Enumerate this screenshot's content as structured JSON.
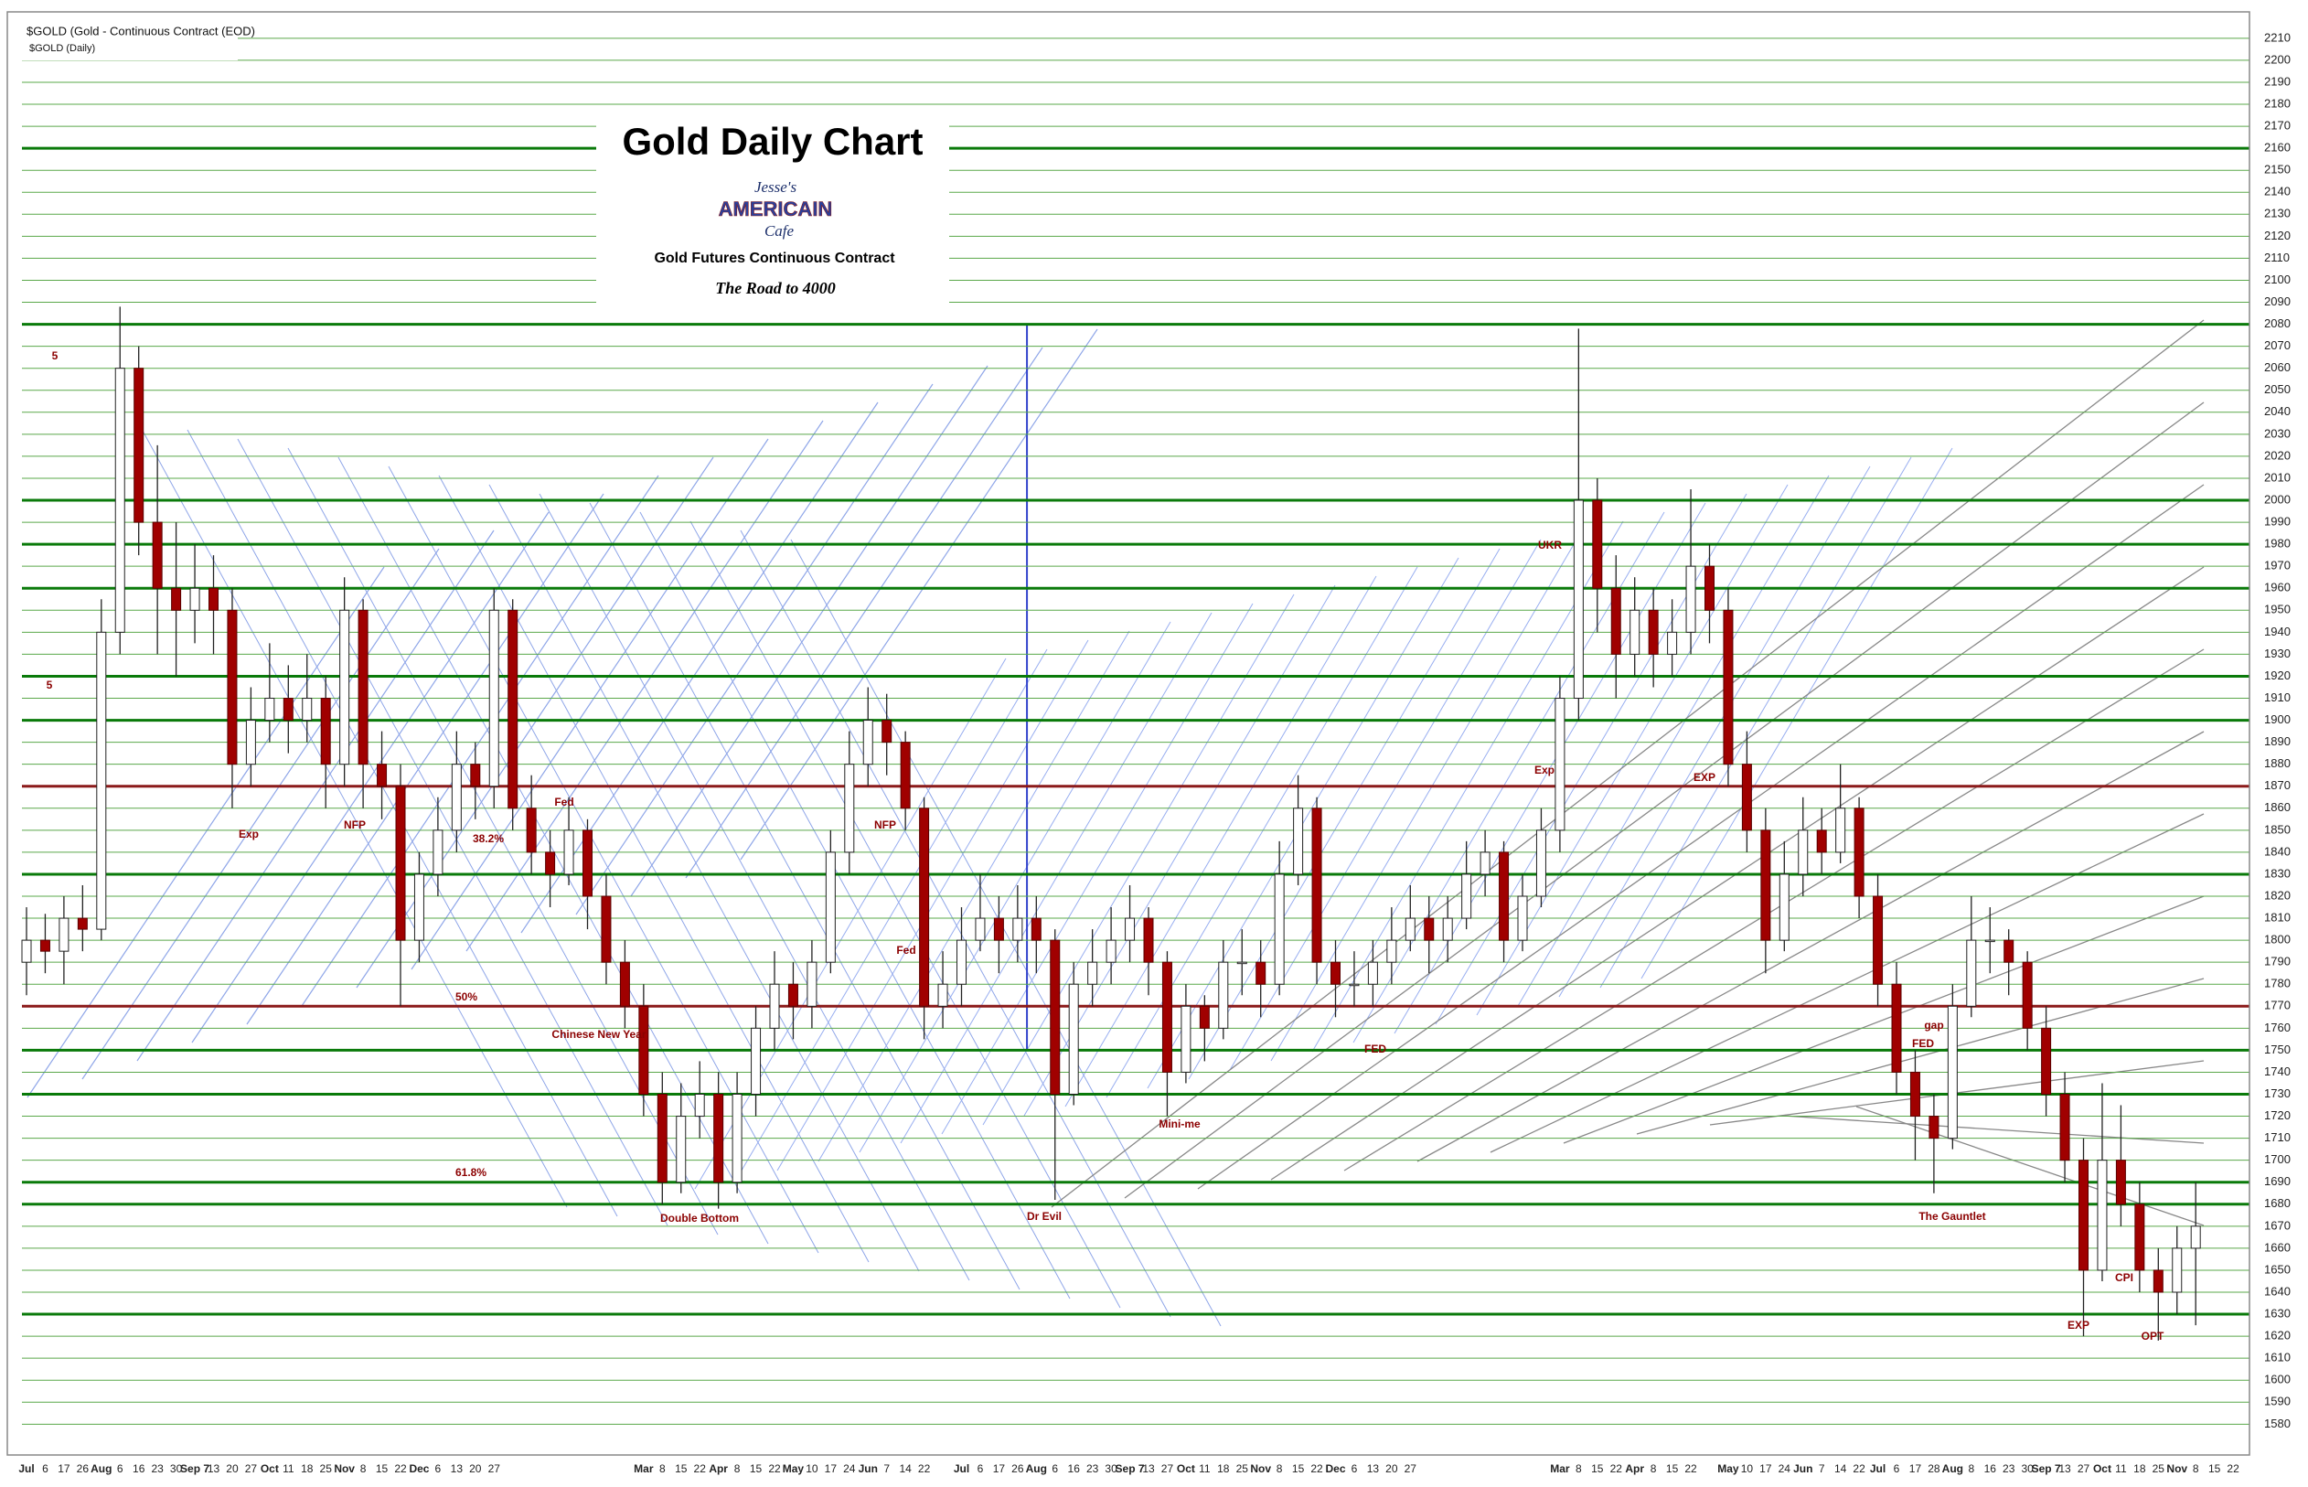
{
  "chart_data": {
    "type": "candlestick",
    "title": "Gold Daily Chart",
    "logo": [
      "Jesse's",
      "AMERICAIN",
      "Cafe"
    ],
    "subtitle": "Gold Futures Continuous Contract",
    "tagline": "The Road to 4000",
    "symbol": "$GOLD (Gold - Continuous Contract (EOD)",
    "symbol_sub": "$GOLD (Daily)",
    "up_color": "#ffffff",
    "down_color": "#a00000",
    "grid": true,
    "grid_color": "#5aa84a",
    "categories": [
      "Jul",
      "6",
      "17",
      "26",
      "Aug",
      "6",
      "16",
      "23",
      "30",
      "Sep 7",
      "13",
      "20",
      "27",
      "Oct",
      "11",
      "18",
      "25",
      "Nov",
      "8",
      "15",
      "22",
      "Dec",
      "6",
      "13",
      "20",
      "27",
      null,
      null,
      null,
      null,
      null,
      null,
      null,
      "Mar",
      "8",
      "15",
      "22",
      "Apr",
      "8",
      "15",
      "22",
      "May",
      "10",
      "17",
      "24",
      "Jun",
      "7",
      "14",
      "22",
      null,
      "Jul",
      "6",
      "17",
      "26",
      "Aug",
      "6",
      "16",
      "23",
      "30",
      "Sep 7",
      "13",
      "27",
      "Oct",
      "11",
      "18",
      "25",
      "Nov",
      "8",
      "15",
      "22",
      "Dec",
      "6",
      "13",
      "20",
      "27",
      null,
      null,
      null,
      null,
      null,
      null,
      null,
      "Mar",
      "8",
      "15",
      "22",
      "Apr",
      "8",
      "15",
      "22",
      null,
      "May",
      "10",
      "17",
      "24",
      "Jun",
      "7",
      "14",
      "22",
      "Jul",
      "6",
      "17",
      "28",
      "Aug",
      "8",
      "16",
      "23",
      "30",
      "Sep 7",
      "13",
      "27",
      "Oct",
      "11",
      "18",
      "25",
      "Nov",
      "8",
      "15",
      "22"
    ],
    "open": [
      1790,
      1800,
      1795,
      1810,
      1805,
      1940,
      2060,
      1990,
      1960,
      1950,
      1960,
      1950,
      1880,
      1900,
      1910,
      1900,
      1910,
      1880,
      1950,
      1880,
      1870,
      1800,
      1830,
      1850,
      1880,
      1870,
      1950,
      1860,
      1840,
      1830,
      1850,
      1820,
      1790,
      1770,
      1730,
      1690,
      1720,
      1730,
      1690,
      1730,
      1760,
      1780,
      1770,
      1790,
      1840,
      1880,
      1900,
      1890,
      1860,
      1770,
      1780,
      1800,
      1810,
      1800,
      1810,
      1800,
      1730,
      1780,
      1790,
      1800,
      1810,
      1790,
      1740,
      1770,
      1760,
      1790,
      1790,
      1780,
      1830,
      1860,
      1790,
      1780,
      1780,
      1790,
      1800,
      1810,
      1800,
      1810,
      1830,
      1840,
      1800,
      1820,
      1850,
      1910,
      2000,
      1960,
      1930,
      1950,
      1930,
      1940,
      1970,
      1950,
      1880,
      1850,
      1800,
      1830,
      1850,
      1840,
      1860,
      1820,
      1780,
      1740,
      1720,
      1710,
      1770,
      1800,
      1800,
      1790,
      1760,
      1730,
      1700,
      1650,
      1700,
      1680,
      1650,
      1640,
      1660,
      null,
      null
    ],
    "high": [
      1815,
      1812,
      1820,
      1825,
      1955,
      2088,
      2070,
      2025,
      1990,
      1980,
      1975,
      1960,
      1915,
      1935,
      1925,
      1930,
      1920,
      1965,
      1955,
      1895,
      1880,
      1840,
      1865,
      1895,
      1890,
      1960,
      1955,
      1875,
      1850,
      1865,
      1855,
      1830,
      1800,
      1780,
      1740,
      1735,
      1745,
      1740,
      1740,
      1770,
      1795,
      1790,
      1800,
      1850,
      1895,
      1915,
      1912,
      1895,
      1865,
      1795,
      1815,
      1830,
      1820,
      1825,
      1820,
      1805,
      1790,
      1805,
      1815,
      1825,
      1815,
      1795,
      1780,
      1775,
      1800,
      1805,
      1800,
      1845,
      1875,
      1865,
      1800,
      1795,
      1800,
      1815,
      1825,
      1820,
      1820,
      1845,
      1850,
      1845,
      1830,
      1860,
      1920,
      2078,
      2010,
      1975,
      1965,
      1960,
      1955,
      2005,
      1980,
      1960,
      1895,
      1860,
      1845,
      1865,
      1860,
      1880,
      1865,
      1830,
      1790,
      1750,
      1730,
      1780,
      1820,
      1815,
      1805,
      1795,
      1770,
      1740,
      1710,
      1735,
      1725,
      1690,
      1660,
      1670,
      1690,
      null,
      null
    ],
    "low": [
      1775,
      1785,
      1780,
      1795,
      1800,
      1930,
      1975,
      1930,
      1920,
      1935,
      1930,
      1860,
      1870,
      1890,
      1885,
      1890,
      1860,
      1870,
      1860,
      1855,
      1770,
      1790,
      1820,
      1840,
      1855,
      1860,
      1850,
      1830,
      1815,
      1825,
      1805,
      1780,
      1760,
      1720,
      1680,
      1685,
      1710,
      1678,
      1685,
      1720,
      1750,
      1755,
      1760,
      1785,
      1830,
      1870,
      1875,
      1850,
      1755,
      1760,
      1770,
      1795,
      1785,
      1790,
      1785,
      1682,
      1725,
      1770,
      1780,
      1790,
      1775,
      1720,
      1735,
      1745,
      1755,
      1775,
      1765,
      1775,
      1825,
      1780,
      1765,
      1770,
      1770,
      1780,
      1795,
      1785,
      1790,
      1805,
      1820,
      1790,
      1795,
      1815,
      1840,
      1900,
      1940,
      1910,
      1920,
      1915,
      1920,
      1930,
      1935,
      1870,
      1840,
      1785,
      1795,
      1820,
      1830,
      1835,
      1810,
      1770,
      1730,
      1700,
      1685,
      1705,
      1765,
      1785,
      1775,
      1750,
      1720,
      1690,
      1620,
      1645,
      1670,
      1640,
      1618,
      1630,
      1625,
      null,
      null
    ],
    "close": [
      1800,
      1795,
      1810,
      1805,
      1940,
      2060,
      1990,
      1960,
      1950,
      1960,
      1950,
      1880,
      1900,
      1910,
      1900,
      1910,
      1880,
      1950,
      1880,
      1870,
      1800,
      1830,
      1850,
      1880,
      1870,
      1950,
      1860,
      1840,
      1830,
      1850,
      1820,
      1790,
      1770,
      1730,
      1690,
      1720,
      1730,
      1690,
      1730,
      1760,
      1780,
      1770,
      1790,
      1840,
      1880,
      1900,
      1890,
      1860,
      1770,
      1780,
      1800,
      1810,
      1800,
      1810,
      1800,
      1730,
      1780,
      1790,
      1800,
      1810,
      1790,
      1740,
      1770,
      1760,
      1790,
      1790,
      1780,
      1830,
      1860,
      1790,
      1780,
      1780,
      1790,
      1800,
      1810,
      1800,
      1810,
      1830,
      1840,
      1800,
      1820,
      1850,
      1910,
      2000,
      1960,
      1930,
      1950,
      1930,
      1940,
      1970,
      1950,
      1880,
      1850,
      1800,
      1830,
      1850,
      1840,
      1860,
      1820,
      1780,
      1740,
      1720,
      1710,
      1770,
      1800,
      1800,
      1790,
      1760,
      1730,
      1700,
      1650,
      1700,
      1680,
      1650,
      1640,
      1660,
      1670,
      null,
      null
    ],
    "ylim": [
      1566,
      2222
    ],
    "yticks": [
      1580,
      1590,
      1600,
      1610,
      1620,
      1630,
      1640,
      1650,
      1660,
      1670,
      1680,
      1690,
      1700,
      1710,
      1720,
      1730,
      1740,
      1750,
      1760,
      1770,
      1780,
      1790,
      1800,
      1810,
      1820,
      1830,
      1840,
      1850,
      1860,
      1870,
      1880,
      1890,
      1900,
      1910,
      1920,
      1930,
      1940,
      1950,
      1960,
      1970,
      1980,
      1990,
      2000,
      2010,
      2020,
      2030,
      2040,
      2050,
      2060,
      2070,
      2080,
      2090,
      2100,
      2110,
      2120,
      2130,
      2140,
      2150,
      2160,
      2170,
      2180,
      2190,
      2200,
      2210
    ],
    "levels": [
      {
        "value": 2160,
        "color": "#0a7a0a"
      },
      {
        "value": 2080,
        "color": "#0a7a0a"
      },
      {
        "value": 2000,
        "color": "#0a7a0a"
      },
      {
        "value": 1980,
        "color": "#0a7a0a"
      },
      {
        "value": 1960,
        "color": "#0a7a0a"
      },
      {
        "value": 1920,
        "color": "#0a7a0a"
      },
      {
        "value": 1900,
        "color": "#0a7a0a"
      },
      {
        "value": 1870,
        "color": "#8b1a1a"
      },
      {
        "value": 1830,
        "color": "#0a7a0a"
      },
      {
        "value": 1770,
        "color": "#8b1a1a"
      },
      {
        "value": 1750,
        "color": "#0a7a0a"
      },
      {
        "value": 1730,
        "color": "#0a7a0a"
      },
      {
        "value": 1690,
        "color": "#0a7a0a"
      },
      {
        "value": 1680,
        "color": "#0a7a0a"
      },
      {
        "value": 1630,
        "color": "#0a7a0a"
      }
    ],
    "annotations": [
      "Double Bottom",
      "Dr Evil",
      "Mini-me",
      "The Gauntlet",
      "38.2%",
      "50%",
      "61.8%",
      "EXP",
      "OPT",
      "CPI",
      "gap",
      "UKR",
      "Exp",
      "NFP",
      "Fed",
      "Fed",
      "NFP",
      "Chinese New Year",
      "FED",
      "FED",
      "Exp",
      "EXP",
      "5",
      "5"
    ]
  }
}
